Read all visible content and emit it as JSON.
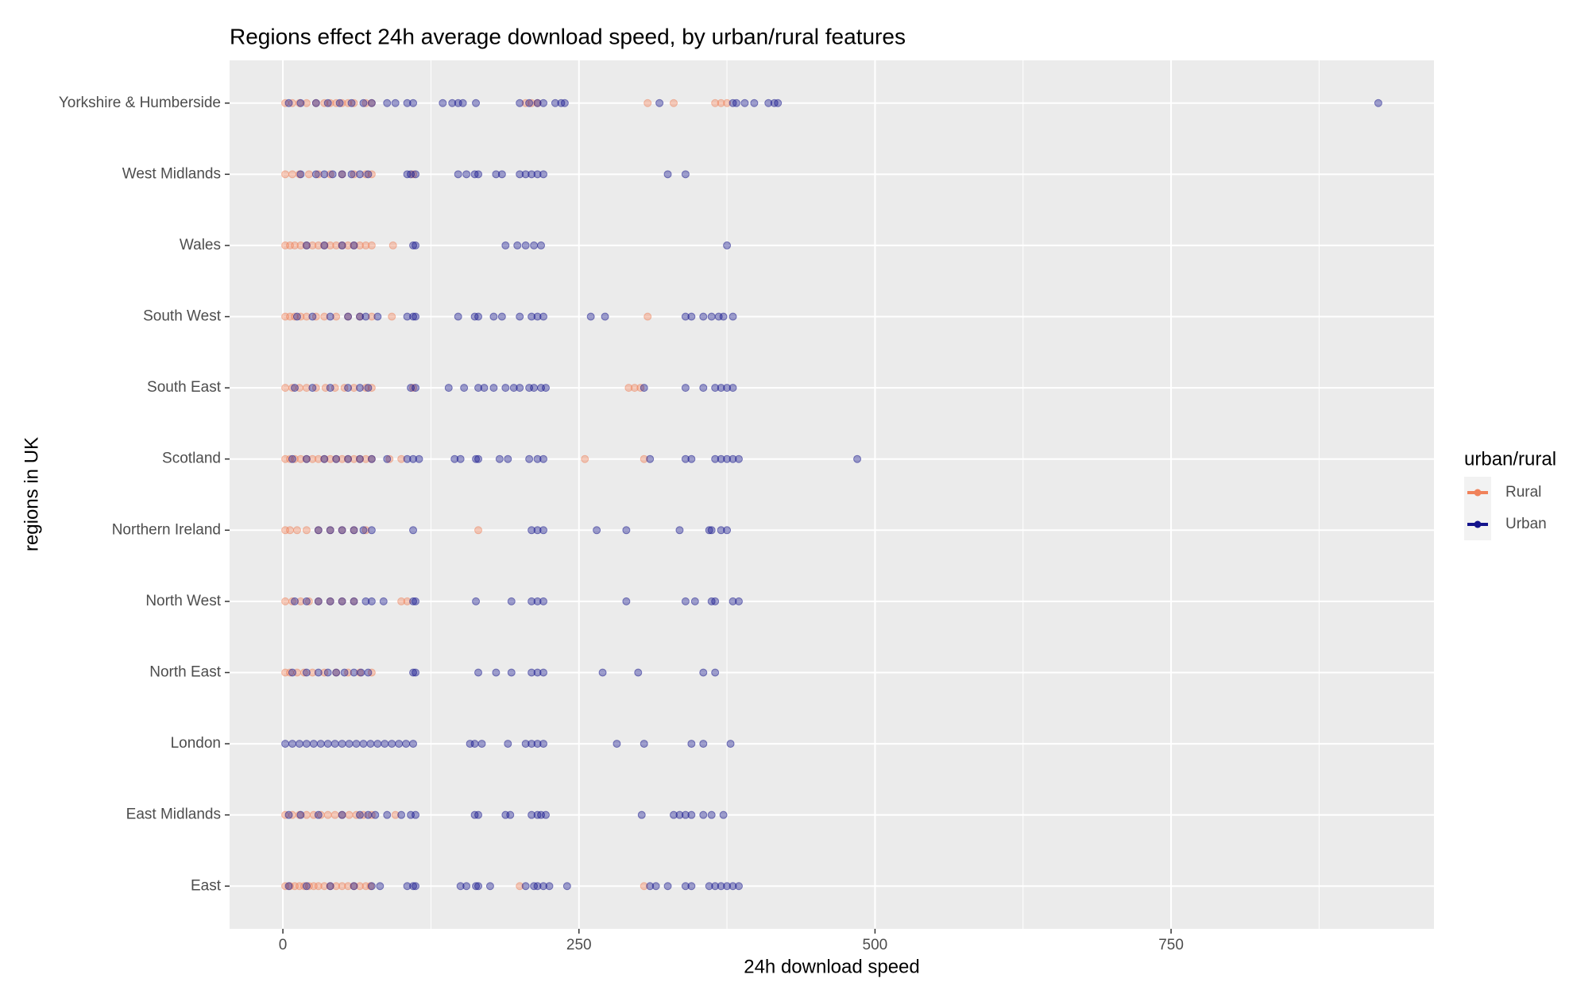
{
  "chart_data": {
    "type": "strip",
    "title": "Regions effect 24h average download speed, by urban/rural features",
    "x_label": "24h download speed",
    "y_label": "regions in UK",
    "legend_title": "urban/rural",
    "legend_position": "right",
    "grid": true,
    "xlim": [
      -45,
      972
    ],
    "xticks": [
      0,
      250,
      500,
      750
    ],
    "xminor_ticks": [
      125,
      375,
      625,
      875
    ],
    "categories": [
      "East",
      "East Midlands",
      "London",
      "North East",
      "North West",
      "Northern Ireland",
      "Scotland",
      "South East",
      "South West",
      "Wales",
      "West Midlands",
      "Yorkshire & Humberside"
    ],
    "series": [
      {
        "name": "Rural",
        "color": "#f0825a",
        "values": [
          [
            2,
            6,
            10,
            14,
            18,
            22,
            26,
            30,
            35,
            40,
            45,
            50,
            55,
            60,
            65,
            70,
            74,
            200,
            305
          ],
          [
            2,
            8,
            14,
            20,
            26,
            32,
            38,
            44,
            50,
            56,
            62,
            68,
            75,
            95
          ],
          [],
          [
            2,
            6,
            12,
            18,
            25,
            35,
            45,
            55,
            65,
            75
          ],
          [
            2,
            8,
            15,
            22,
            30,
            40,
            50,
            60,
            100,
            105
          ],
          [
            2,
            6,
            12,
            20,
            30,
            40,
            50,
            60,
            70,
            165
          ],
          [
            2,
            6,
            10,
            15,
            20,
            25,
            30,
            35,
            40,
            45,
            50,
            55,
            60,
            65,
            70,
            75,
            90,
            100,
            255,
            305
          ],
          [
            2,
            8,
            14,
            20,
            28,
            36,
            44,
            52,
            60,
            70,
            75,
            110,
            292,
            297,
            302
          ],
          [
            2,
            6,
            10,
            15,
            20,
            28,
            35,
            45,
            55,
            65,
            75,
            92,
            308
          ],
          [
            2,
            6,
            10,
            15,
            20,
            25,
            30,
            35,
            40,
            45,
            50,
            55,
            60,
            65,
            70,
            75,
            93
          ],
          [
            2,
            8,
            14,
            22,
            30,
            40,
            50,
            60,
            70,
            75,
            110
          ],
          [
            2,
            8,
            14,
            20,
            28,
            35,
            40,
            45,
            50,
            55,
            60,
            70,
            75,
            205,
            210,
            215,
            308,
            330,
            365,
            370,
            375
          ]
        ]
      },
      {
        "name": "Urban",
        "color": "#14148c",
        "values": [
          [
            5,
            20,
            40,
            60,
            75,
            82,
            105,
            110,
            112,
            150,
            155,
            163,
            165,
            175,
            205,
            212,
            215,
            220,
            225,
            240,
            310,
            315,
            325,
            340,
            345,
            360,
            365,
            370,
            375,
            380,
            385
          ],
          [
            5,
            15,
            30,
            50,
            65,
            72,
            78,
            88,
            100,
            108,
            112,
            162,
            165,
            188,
            192,
            210,
            215,
            218,
            222,
            303,
            330,
            335,
            340,
            345,
            355,
            362,
            372
          ],
          [
            2,
            8,
            14,
            20,
            26,
            32,
            38,
            44,
            50,
            56,
            62,
            68,
            74,
            80,
            86,
            92,
            98,
            104,
            110,
            158,
            162,
            168,
            190,
            205,
            210,
            215,
            220,
            282,
            305,
            345,
            355,
            378
          ],
          [
            8,
            20,
            30,
            38,
            45,
            52,
            60,
            66,
            72,
            110,
            112,
            165,
            180,
            193,
            210,
            215,
            220,
            270,
            300,
            355,
            365
          ],
          [
            10,
            20,
            30,
            40,
            50,
            60,
            70,
            75,
            85,
            110,
            112,
            163,
            193,
            210,
            215,
            220,
            290,
            340,
            348,
            362,
            365,
            380,
            385
          ],
          [
            30,
            40,
            50,
            60,
            68,
            75,
            110,
            210,
            215,
            220,
            265,
            290,
            335,
            360,
            362,
            370,
            375
          ],
          [
            8,
            20,
            35,
            45,
            55,
            65,
            75,
            88,
            105,
            110,
            115,
            145,
            150,
            163,
            165,
            183,
            190,
            208,
            215,
            220,
            310,
            340,
            345,
            365,
            370,
            375,
            380,
            385,
            485
          ],
          [
            10,
            25,
            40,
            55,
            65,
            72,
            108,
            112,
            140,
            153,
            165,
            170,
            178,
            188,
            195,
            200,
            208,
            212,
            218,
            222,
            305,
            340,
            355,
            365,
            370,
            375,
            380
          ],
          [
            12,
            25,
            40,
            55,
            65,
            70,
            80,
            105,
            110,
            112,
            148,
            162,
            165,
            178,
            185,
            200,
            210,
            215,
            220,
            260,
            272,
            340,
            345,
            355,
            362,
            368,
            372,
            380
          ],
          [
            20,
            35,
            50,
            60,
            110,
            112,
            188,
            198,
            205,
            212,
            218,
            375
          ],
          [
            15,
            28,
            35,
            42,
            50,
            58,
            65,
            72,
            105,
            108,
            112,
            148,
            155,
            162,
            165,
            180,
            185,
            200,
            205,
            210,
            215,
            220,
            325,
            340
          ],
          [
            5,
            15,
            28,
            38,
            48,
            58,
            68,
            75,
            88,
            95,
            105,
            110,
            135,
            143,
            148,
            152,
            163,
            200,
            208,
            215,
            220,
            230,
            235,
            238,
            318,
            380,
            383,
            390,
            398,
            410,
            415,
            418,
            925
          ]
        ]
      }
    ]
  }
}
